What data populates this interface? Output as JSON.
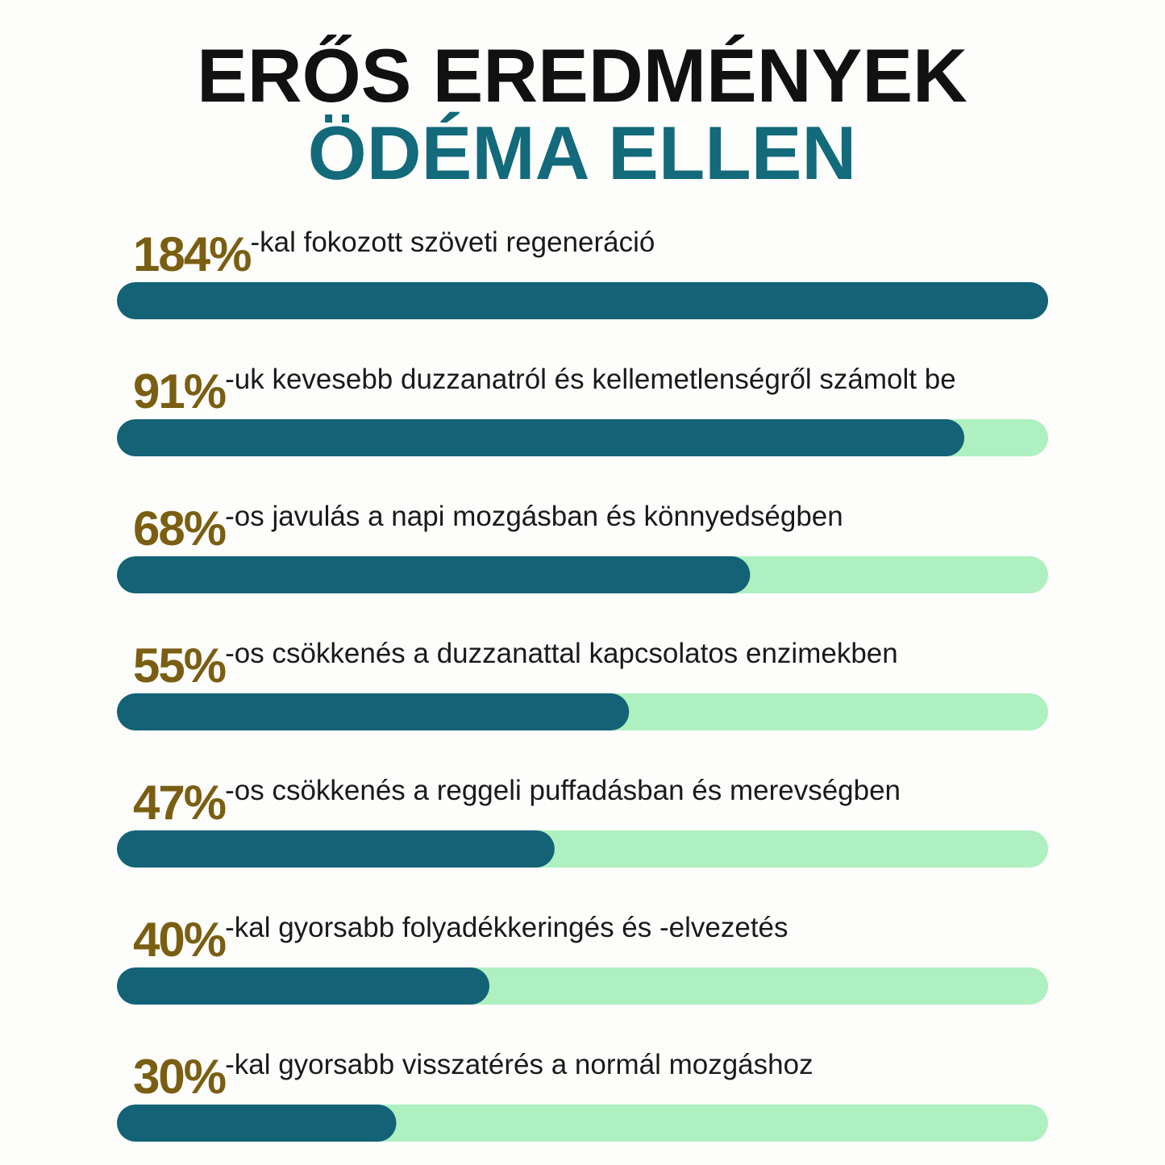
{
  "chart_data": {
    "type": "bar",
    "orientation": "horizontal",
    "title": "ERŐS EREDMÉNYEK",
    "subtitle": "ÖDÉMA ELLEN",
    "categories": [
      "-kal fokozott szöveti regeneráció",
      "-uk kevesebb duzzanatról és kellemetlenségről számolt be",
      "-os javulás a napi mozgásban és könnyedségben",
      "-os csökkenés a duzzanattal kapcsolatos enzimekben",
      "-os csökkenés a reggeli puffadásban és merevségben",
      "-kal gyorsabb folyadékkeringés és -elvezetés",
      "-kal gyorsabb visszatérés a normál mozgáshoz"
    ],
    "values": [
      184,
      91,
      68,
      55,
      47,
      40,
      30
    ],
    "value_labels": [
      "184%",
      "91%",
      "68%",
      "55%",
      "47%",
      "40%",
      "30%"
    ],
    "xlim": [
      0,
      100
    ],
    "color": "#136276",
    "track_color": "#aef0c0",
    "value_label_color": "#7a5e12",
    "title_color": "#111111",
    "subtitle_color": "#136a7a"
  }
}
